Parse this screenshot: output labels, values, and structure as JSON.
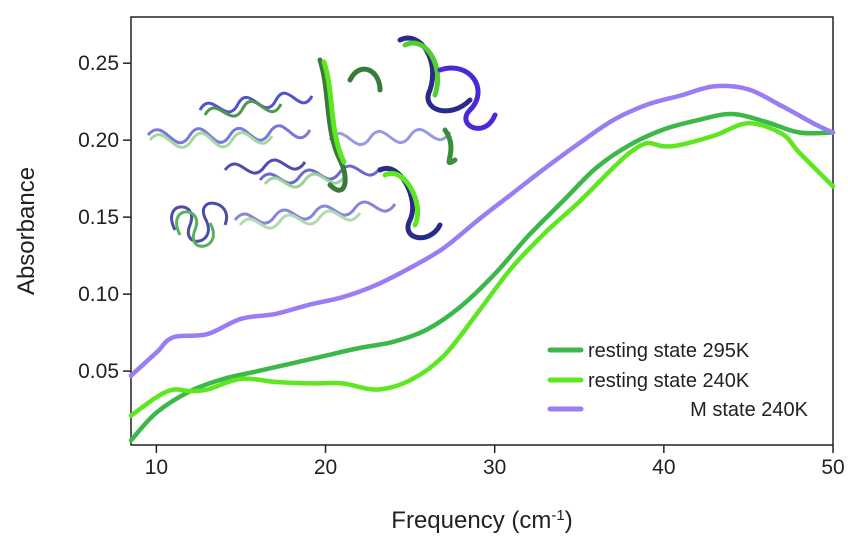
{
  "chart_data": {
    "type": "line",
    "xlabel": "Frequency (cm",
    "xlabel_sup": "-1",
    "xlabel_close": ")",
    "ylabel": "Absorbance",
    "xlim": [
      8.5,
      50
    ],
    "ylim": [
      0.002,
      0.28
    ],
    "x_ticks": [
      10,
      20,
      30,
      40,
      50
    ],
    "x_tick_labels": [
      "10",
      "20",
      "30",
      "40",
      "50"
    ],
    "y_ticks": [
      0.05,
      0.1,
      0.15,
      0.2,
      0.25
    ],
    "y_tick_labels": [
      "0.05",
      "0.10",
      "0.15",
      "0.20",
      "0.25"
    ],
    "grid": false,
    "legend_position": "bottom-right",
    "inset": "protein-ribbon-structure",
    "series": [
      {
        "name": "resting state 295K",
        "color": "#3cb84a",
        "x": [
          8.5,
          10,
          12,
          14,
          16,
          18,
          20,
          22,
          24,
          26,
          28,
          30,
          32,
          34,
          36,
          38,
          40,
          42,
          44,
          46,
          48,
          50
        ],
        "y": [
          0.005,
          0.023,
          0.037,
          0.045,
          0.05,
          0.055,
          0.06,
          0.065,
          0.069,
          0.077,
          0.092,
          0.113,
          0.138,
          0.16,
          0.182,
          0.197,
          0.207,
          0.213,
          0.217,
          0.212,
          0.205,
          0.205
        ]
      },
      {
        "name": "resting state 240K",
        "color": "#5ee620",
        "x": [
          8.5,
          10,
          11,
          12,
          13,
          15,
          17,
          19,
          21,
          23,
          25,
          27,
          29,
          31,
          33,
          35,
          37,
          38,
          39,
          40,
          41,
          43,
          45,
          47,
          48,
          50
        ],
        "y": [
          0.021,
          0.033,
          0.038,
          0.037,
          0.038,
          0.045,
          0.043,
          0.042,
          0.042,
          0.038,
          0.044,
          0.06,
          0.088,
          0.117,
          0.14,
          0.16,
          0.182,
          0.192,
          0.198,
          0.196,
          0.197,
          0.203,
          0.211,
          0.204,
          0.192,
          0.17
        ]
      },
      {
        "name": "M state 240K",
        "color": "#9a7cf4",
        "x": [
          8.5,
          10,
          11,
          13,
          15,
          17,
          19,
          21,
          23,
          25,
          27,
          29,
          31,
          33,
          35,
          37,
          39,
          41,
          43,
          45,
          47,
          49,
          50
        ],
        "y": [
          0.047,
          0.062,
          0.072,
          0.074,
          0.084,
          0.087,
          0.093,
          0.098,
          0.106,
          0.117,
          0.13,
          0.148,
          0.165,
          0.182,
          0.198,
          0.213,
          0.223,
          0.229,
          0.235,
          0.233,
          0.222,
          0.21,
          0.205
        ]
      }
    ]
  }
}
